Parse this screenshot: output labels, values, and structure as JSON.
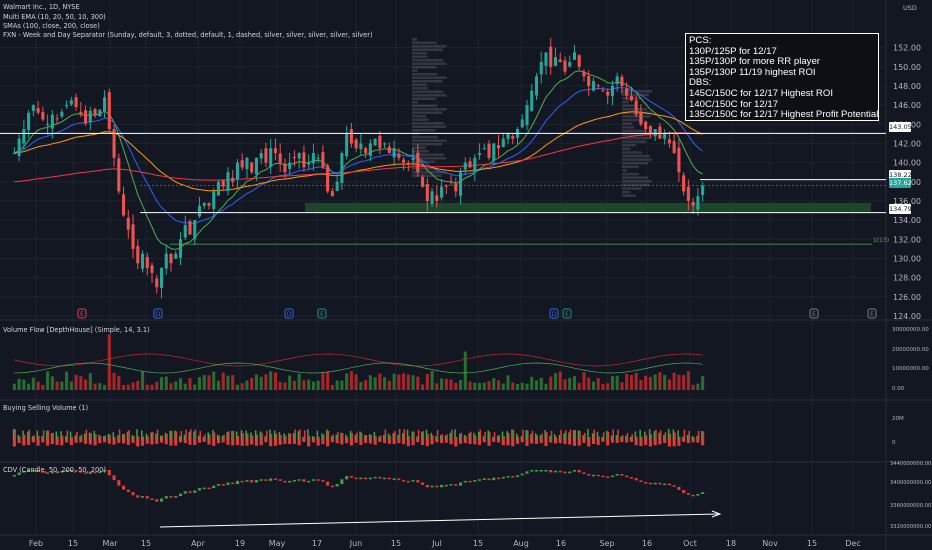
{
  "header": {
    "title": "Walmart Inc., 1D, NYSE",
    "line2": "Multi EMA (10, 20, 50, 10, 300)",
    "line3": "SMAs (100, close, 200, close)",
    "line4": "FXN - Week and Day Separator (Sunday, default, 3, dotted, default, 1, dashed, silver, silver, silver, silver, silver)"
  },
  "currency": "USD",
  "note": {
    "lines": [
      "PCS:",
      "130P/125P for 12/17",
      "135P/130P for more RR player",
      "135P/130P 11/19 highest ROI",
      "DBS:",
      "145C/150C for 12/17 Highest ROI",
      "140C/150C for 12/17",
      "135C/150C for 12/17 Highest Profit Potential"
    ]
  },
  "price_tags": [
    {
      "label": "143.05",
      "bg": "#ffffff",
      "fg": "#131722"
    },
    {
      "label": "138.22",
      "bg": "#ffffff",
      "fg": "#131722"
    },
    {
      "label": "137.62",
      "bg": "#26a69a",
      "fg": "#ffffff"
    },
    {
      "label": "134.79",
      "bg": "#ffffff",
      "fg": "#131722"
    }
  ],
  "level_label": "1(13)",
  "panes": {
    "volume_flow": "Volume Flow [DepthHouse] (Simple, 14, 3.1)",
    "buy_sell": "Buying Selling Volume (1)",
    "cdv": "CDV (Candle, 50, 200, 50, 200)"
  },
  "pane_axis": {
    "volume_flow": [
      "30000000.00",
      "20000000.00",
      "10000000.00",
      "0.00"
    ],
    "buy_sell": [
      "20M",
      "0"
    ],
    "cdv": [
      "3440000000.00",
      "3400000000.00",
      "3360000000.00",
      "3320000000.00"
    ]
  },
  "event_markers": [
    {
      "letter": "E",
      "color": "#f23645"
    },
    {
      "letter": "D",
      "color": "#2962ff"
    },
    {
      "letter": "D",
      "color": "#2962ff"
    },
    {
      "letter": "E",
      "color": "#089981"
    },
    {
      "letter": "D",
      "color": "#2962ff"
    },
    {
      "letter": "E",
      "color": "#089981"
    },
    {
      "letter": "E",
      "color": "#787b86"
    },
    {
      "letter": "E",
      "color": "#787b86"
    }
  ],
  "colors": {
    "bg": "#131722",
    "up": "#26a69a",
    "down": "#ef5350",
    "grid": "#1e222d",
    "text": "#b2b5be"
  },
  "chart_data": {
    "type": "candlestick",
    "title": "Walmart Inc., 1D, NYSE",
    "x_ticks": [
      "Feb",
      "15",
      "Mar",
      "15",
      "Apr",
      "19",
      "May",
      "17",
      "Jun",
      "15",
      "Jul",
      "15",
      "Aug",
      "16",
      "Sep",
      "16",
      "Oct",
      "18",
      "Nov",
      "15",
      "Dec"
    ],
    "y_ticks": [
      124,
      126,
      128,
      130,
      132,
      134,
      136,
      138,
      140,
      142,
      144,
      146,
      148,
      150,
      152
    ],
    "ylim": [
      124,
      153
    ],
    "horizontal_levels": [
      143.05,
      138.22,
      134.79,
      131.5
    ],
    "support_zone": [
      134.8,
      135.8
    ],
    "last_price": 137.62,
    "closes": [
      141.0,
      142.5,
      143.5,
      145.2,
      146.0,
      145.2,
      144.5,
      144.0,
      145.0,
      144.6,
      145.3,
      146.0,
      146.5,
      145.8,
      145.0,
      144.1,
      145.4,
      144.9,
      145.5,
      146.8,
      143.5,
      140.5,
      137.0,
      134.5,
      133.0,
      131.0,
      129.5,
      130.5,
      129.0,
      128.5,
      127.0,
      129.0,
      130.5,
      129.5,
      130.5,
      132.0,
      133.5,
      132.5,
      134.0,
      135.5,
      135.8,
      135.5,
      137.0,
      138.0,
      137.5,
      139.0,
      138.0,
      140.0,
      139.5,
      140.5,
      139.0,
      140.5,
      141.0,
      140.0,
      141.5,
      141.0,
      140.0,
      139.0,
      140.0,
      140.5,
      141.0,
      139.5,
      140.0,
      141.0,
      140.5,
      139.5,
      137.0,
      136.5,
      138.0,
      141.0,
      143.0,
      142.0,
      141.5,
      142.0,
      141.0,
      142.0,
      142.5,
      141.5,
      142.0,
      141.0,
      141.5,
      140.5,
      140.0,
      139.8,
      140.5,
      139.0,
      137.5,
      136.0,
      137.0,
      136.0,
      137.5,
      137.5,
      138.0,
      137.0,
      139.0,
      140.0,
      139.5,
      140.5,
      141.0,
      141.5,
      140.5,
      142.0,
      141.5,
      142.5,
      143.0,
      142.5,
      143.5,
      144.5,
      146.0,
      147.5,
      149.0,
      150.5,
      151.5,
      150.0,
      151.0,
      150.5,
      149.5,
      150.5,
      151.5,
      150.0,
      149.0,
      148.0,
      148.5,
      148.0,
      147.5,
      147.0,
      148.0,
      149.0,
      148.0,
      147.0,
      146.5,
      145.0,
      144.0,
      143.5,
      143.0,
      143.5,
      142.5,
      143.0,
      142.0,
      141.0,
      139.0,
      137.0,
      136.0,
      135.5,
      136.5,
      137.6
    ],
    "series": [
      {
        "name": "EMA 10",
        "color": "#4caf50"
      },
      {
        "name": "EMA 20",
        "color": "#2962ff"
      },
      {
        "name": "EMA 50",
        "color": "#ff9800"
      },
      {
        "name": "EMA 300",
        "color": "#f23645"
      }
    ]
  }
}
